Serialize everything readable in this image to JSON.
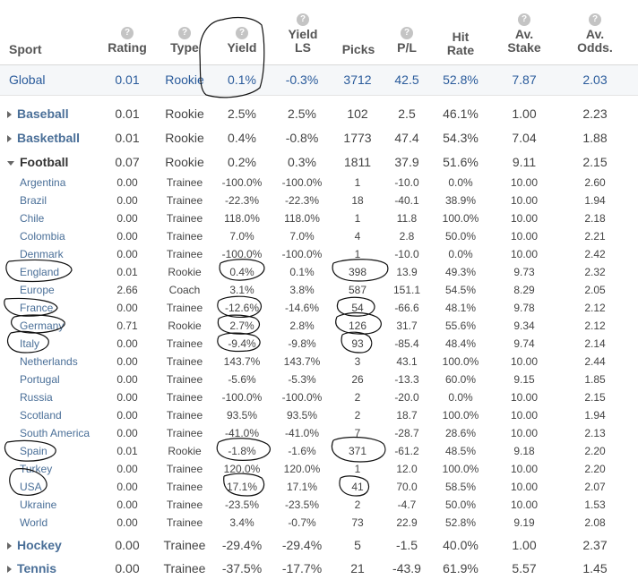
{
  "headers": {
    "sport": "Sport",
    "rating": "Rating",
    "type": "Type",
    "yield": "Yield",
    "yield_ls_1": "Yield",
    "yield_ls_2": "LS",
    "picks": "Picks",
    "pl": "P/L",
    "hit_1": "Hit",
    "hit_2": "Rate",
    "stake_1": "Av.",
    "stake_2": "Stake",
    "odds_1": "Av.",
    "odds_2": "Odds.",
    "help": "?"
  },
  "global": {
    "sport": "Global",
    "rating": "0.01",
    "type": "Rookie",
    "yield": "0.1%",
    "yield_ls": "-0.3%",
    "picks": "3712",
    "pl": "42.5",
    "hit": "52.8%",
    "stake": "7.87",
    "odds": "2.03"
  },
  "sports": [
    {
      "sport": "Baseball",
      "rating": "0.01",
      "type": "Rookie",
      "yield": "2.5%",
      "yield_ls": "2.5%",
      "picks": "102",
      "pl": "2.5",
      "hit": "46.1%",
      "stake": "1.00",
      "odds": "2.23"
    },
    {
      "sport": "Basketball",
      "rating": "0.01",
      "type": "Rookie",
      "yield": "0.4%",
      "yield_ls": "-0.8%",
      "picks": "1773",
      "pl": "47.4",
      "hit": "54.3%",
      "stake": "7.04",
      "odds": "1.88"
    },
    {
      "sport": "Football",
      "rating": "0.07",
      "type": "Rookie",
      "yield": "0.2%",
      "yield_ls": "0.3%",
      "picks": "1811",
      "pl": "37.9",
      "hit": "51.6%",
      "stake": "9.11",
      "odds": "2.15"
    }
  ],
  "countries": [
    {
      "sport": "Argentina",
      "rating": "0.00",
      "type": "Trainee",
      "yield": "-100.0%",
      "yield_ls": "-100.0%",
      "picks": "1",
      "pl": "-10.0",
      "hit": "0.0%",
      "stake": "10.00",
      "odds": "2.60"
    },
    {
      "sport": "Brazil",
      "rating": "0.00",
      "type": "Trainee",
      "yield": "-22.3%",
      "yield_ls": "-22.3%",
      "picks": "18",
      "pl": "-40.1",
      "hit": "38.9%",
      "stake": "10.00",
      "odds": "1.94"
    },
    {
      "sport": "Chile",
      "rating": "0.00",
      "type": "Trainee",
      "yield": "118.0%",
      "yield_ls": "118.0%",
      "picks": "1",
      "pl": "11.8",
      "hit": "100.0%",
      "stake": "10.00",
      "odds": "2.18"
    },
    {
      "sport": "Colombia",
      "rating": "0.00",
      "type": "Trainee",
      "yield": "7.0%",
      "yield_ls": "7.0%",
      "picks": "4",
      "pl": "2.8",
      "hit": "50.0%",
      "stake": "10.00",
      "odds": "2.21"
    },
    {
      "sport": "Denmark",
      "rating": "0.00",
      "type": "Trainee",
      "yield": "-100.0%",
      "yield_ls": "-100.0%",
      "picks": "1",
      "pl": "-10.0",
      "hit": "0.0%",
      "stake": "10.00",
      "odds": "2.42"
    },
    {
      "sport": "England",
      "rating": "0.01",
      "type": "Rookie",
      "yield": "0.4%",
      "yield_ls": "0.1%",
      "picks": "398",
      "pl": "13.9",
      "hit": "49.3%",
      "stake": "9.73",
      "odds": "2.32"
    },
    {
      "sport": "Europe",
      "rating": "2.66",
      "type": "Coach",
      "yield": "3.1%",
      "yield_ls": "3.8%",
      "picks": "587",
      "pl": "151.1",
      "hit": "54.5%",
      "stake": "8.29",
      "odds": "2.05"
    },
    {
      "sport": "France",
      "rating": "0.00",
      "type": "Trainee",
      "yield": "-12.6%",
      "yield_ls": "-14.6%",
      "picks": "54",
      "pl": "-66.6",
      "hit": "48.1%",
      "stake": "9.78",
      "odds": "2.12"
    },
    {
      "sport": "Germany",
      "rating": "0.71",
      "type": "Rookie",
      "yield": "2.7%",
      "yield_ls": "2.8%",
      "picks": "126",
      "pl": "31.7",
      "hit": "55.6%",
      "stake": "9.34",
      "odds": "2.12"
    },
    {
      "sport": "Italy",
      "rating": "0.00",
      "type": "Trainee",
      "yield": "-9.4%",
      "yield_ls": "-9.8%",
      "picks": "93",
      "pl": "-85.4",
      "hit": "48.4%",
      "stake": "9.74",
      "odds": "2.14"
    },
    {
      "sport": "Netherlands",
      "rating": "0.00",
      "type": "Trainee",
      "yield": "143.7%",
      "yield_ls": "143.7%",
      "picks": "3",
      "pl": "43.1",
      "hit": "100.0%",
      "stake": "10.00",
      "odds": "2.44"
    },
    {
      "sport": "Portugal",
      "rating": "0.00",
      "type": "Trainee",
      "yield": "-5.6%",
      "yield_ls": "-5.3%",
      "picks": "26",
      "pl": "-13.3",
      "hit": "60.0%",
      "stake": "9.15",
      "odds": "1.85"
    },
    {
      "sport": "Russia",
      "rating": "0.00",
      "type": "Trainee",
      "yield": "-100.0%",
      "yield_ls": "-100.0%",
      "picks": "2",
      "pl": "-20.0",
      "hit": "0.0%",
      "stake": "10.00",
      "odds": "2.15"
    },
    {
      "sport": "Scotland",
      "rating": "0.00",
      "type": "Trainee",
      "yield": "93.5%",
      "yield_ls": "93.5%",
      "picks": "2",
      "pl": "18.7",
      "hit": "100.0%",
      "stake": "10.00",
      "odds": "1.94"
    },
    {
      "sport": "South America",
      "rating": "0.00",
      "type": "Trainee",
      "yield": "-41.0%",
      "yield_ls": "-41.0%",
      "picks": "7",
      "pl": "-28.7",
      "hit": "28.6%",
      "stake": "10.00",
      "odds": "2.13"
    },
    {
      "sport": "Spain",
      "rating": "0.01",
      "type": "Rookie",
      "yield": "-1.8%",
      "yield_ls": "-1.6%",
      "picks": "371",
      "pl": "-61.2",
      "hit": "48.5%",
      "stake": "9.18",
      "odds": "2.20"
    },
    {
      "sport": "Turkey",
      "rating": "0.00",
      "type": "Trainee",
      "yield": "120.0%",
      "yield_ls": "120.0%",
      "picks": "1",
      "pl": "12.0",
      "hit": "100.0%",
      "stake": "10.00",
      "odds": "2.20"
    },
    {
      "sport": "USA",
      "rating": "0.00",
      "type": "Trainee",
      "yield": "17.1%",
      "yield_ls": "17.1%",
      "picks": "41",
      "pl": "70.0",
      "hit": "58.5%",
      "stake": "10.00",
      "odds": "2.07"
    },
    {
      "sport": "Ukraine",
      "rating": "0.00",
      "type": "Trainee",
      "yield": "-23.5%",
      "yield_ls": "-23.5%",
      "picks": "2",
      "pl": "-4.7",
      "hit": "50.0%",
      "stake": "10.00",
      "odds": "1.53"
    },
    {
      "sport": "World",
      "rating": "0.00",
      "type": "Trainee",
      "yield": "3.4%",
      "yield_ls": "-0.7%",
      "picks": "73",
      "pl": "22.9",
      "hit": "52.8%",
      "stake": "9.19",
      "odds": "2.08"
    }
  ],
  "sports_after": [
    {
      "sport": "Hockey",
      "rating": "0.00",
      "type": "Trainee",
      "yield": "-29.4%",
      "yield_ls": "-29.4%",
      "picks": "5",
      "pl": "-1.5",
      "hit": "40.0%",
      "stake": "1.00",
      "odds": "2.37"
    },
    {
      "sport": "Tennis",
      "rating": "0.00",
      "type": "Trainee",
      "yield": "-37.5%",
      "yield_ls": "-17.7%",
      "picks": "21",
      "pl": "-43.9",
      "hit": "61.9%",
      "stake": "5.57",
      "odds": "1.45"
    }
  ]
}
